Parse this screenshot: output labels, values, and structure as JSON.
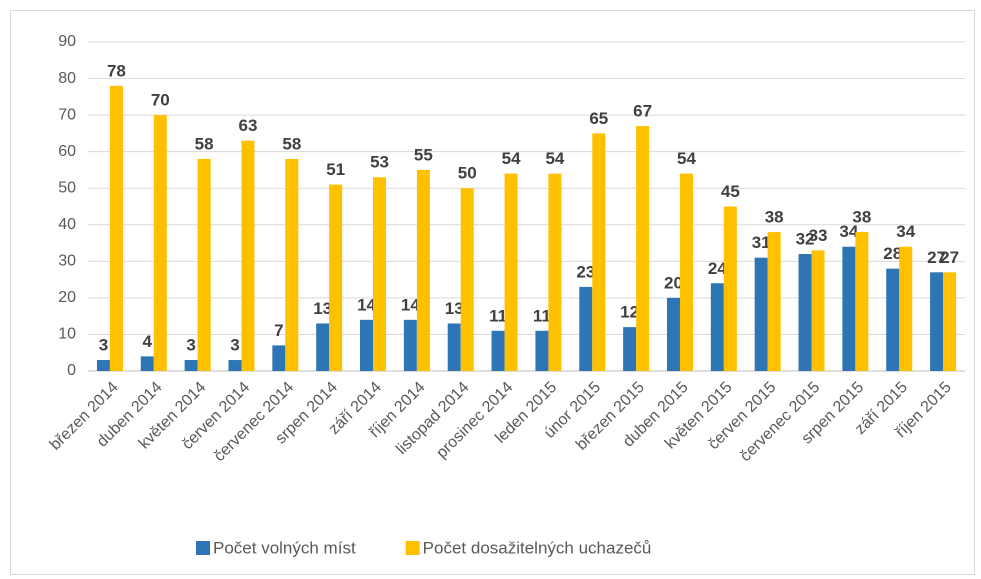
{
  "chart_data": {
    "type": "bar",
    "categories": [
      "březen 2014",
      "duben 2014",
      "květen 2014",
      "červen 2014",
      "červenec 2014",
      "srpen 2014",
      "září 2014",
      "říjen 2014",
      "listopad 2014",
      "prosinec 2014",
      "leden 2015",
      "únor 2015",
      "březen 2015",
      "duben 2015",
      "květen 2015",
      "červen 2015",
      "červenec 2015",
      "srpen 2015",
      "září 2015",
      "říjen 2015"
    ],
    "series": [
      {
        "name": "Počet volných míst",
        "color": "#2e75b6",
        "values": [
          3,
          4,
          3,
          3,
          7,
          13,
          14,
          14,
          13,
          11,
          11,
          23,
          12,
          20,
          24,
          31,
          32,
          34,
          28,
          27
        ]
      },
      {
        "name": "Počet dosažitelných uchazečů",
        "color": "#ffc000",
        "values": [
          78,
          70,
          58,
          63,
          58,
          51,
          53,
          55,
          50,
          54,
          54,
          65,
          67,
          54,
          45,
          38,
          33,
          38,
          34,
          27
        ]
      }
    ],
    "ylim": [
      0,
      90
    ],
    "yticks": [
      0,
      10,
      20,
      30,
      40,
      50,
      60,
      70,
      80,
      90
    ],
    "grid": true,
    "legend": "bottom"
  }
}
